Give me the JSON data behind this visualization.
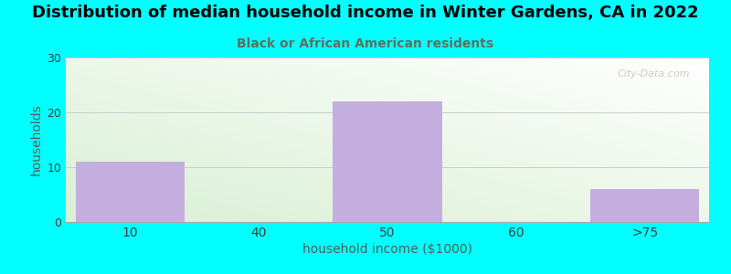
{
  "title": "Distribution of median household income in Winter Gardens, CA in 2022",
  "subtitle": "Black or African American residents",
  "xlabel": "household income ($1000)",
  "ylabel": "households",
  "categories": [
    "10",
    "40",
    "50",
    "60",
    ">75"
  ],
  "values": [
    11,
    0,
    22,
    0,
    6
  ],
  "bar_color": "#c4aede",
  "background_color": "#00FFFF",
  "plot_bg_topleft": "#d8f0d4",
  "plot_bg_topright": "#ffffff",
  "plot_bg_bottomleft": "#d8f0d4",
  "plot_bg_bottomright": "#ffffff",
  "ylim": [
    0,
    30
  ],
  "yticks": [
    0,
    10,
    20,
    30
  ],
  "title_fontsize": 13,
  "subtitle_fontsize": 10,
  "xlabel_fontsize": 10,
  "ylabel_fontsize": 10,
  "watermark_text": "City-Data.com",
  "title_color": "#000000",
  "subtitle_color": "#607060",
  "axis_label_color": "#506050",
  "tick_color": "#404040",
  "bar_width": 0.85
}
